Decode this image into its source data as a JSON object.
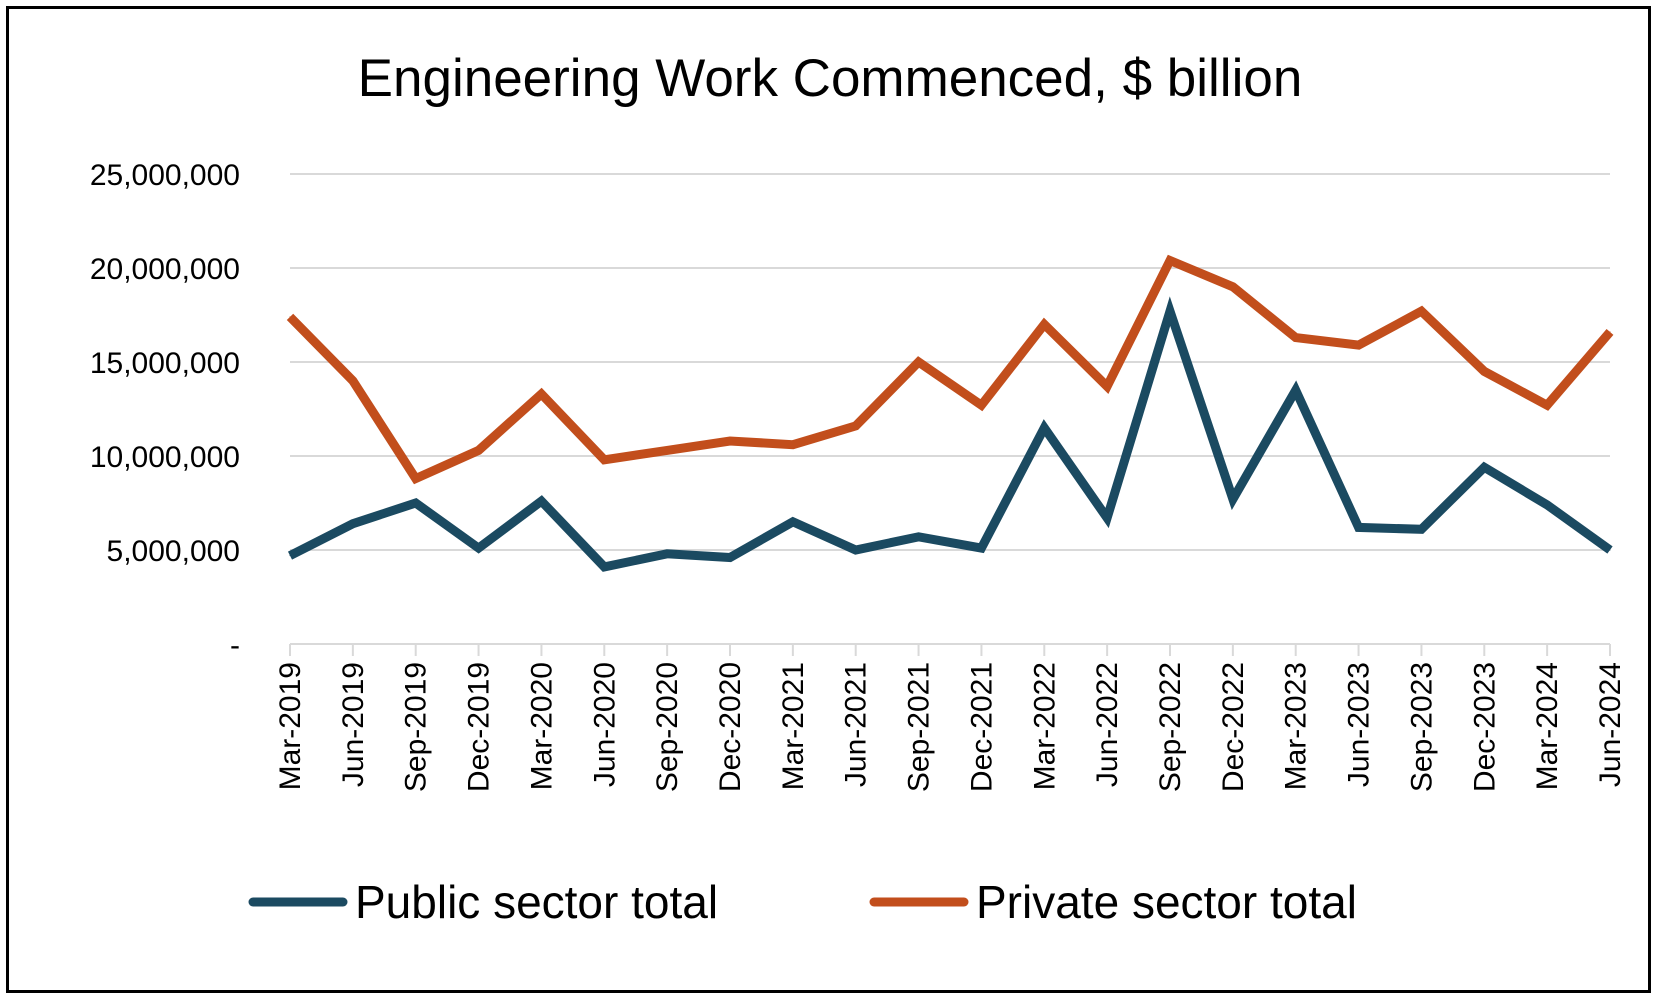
{
  "chart_data": {
    "type": "line",
    "title": "Engineering Work Commenced, $ billion",
    "xlabel": "",
    "ylabel": "",
    "ylim": [
      0,
      25000000
    ],
    "yticks": [
      0,
      5000000,
      10000000,
      15000000,
      20000000,
      25000000
    ],
    "ytick_labels": [
      "-",
      "5,000,000",
      "10,000,000",
      "15,000,000",
      "20,000,000",
      "25,000,000"
    ],
    "categories": [
      "Mar-2019",
      "Jun-2019",
      "Sep-2019",
      "Dec-2019",
      "Mar-2020",
      "Jun-2020",
      "Sep-2020",
      "Dec-2020",
      "Mar-2021",
      "Jun-2021",
      "Sep-2021",
      "Dec-2021",
      "Mar-2022",
      "Jun-2022",
      "Sep-2022",
      "Dec-2022",
      "Mar-2023",
      "Jun-2023",
      "Sep-2023",
      "Dec-2023",
      "Mar-2024",
      "Jun-2024"
    ],
    "grid": true,
    "legend_position": "bottom",
    "series": [
      {
        "name": "Public sector total",
        "color": "#1b4a61",
        "values": [
          4700000,
          6400000,
          7500000,
          5100000,
          7600000,
          4100000,
          4800000,
          4600000,
          6500000,
          5000000,
          5700000,
          5100000,
          11500000,
          6700000,
          17700000,
          7700000,
          13500000,
          6200000,
          6100000,
          9400000,
          7400000,
          5000000
        ]
      },
      {
        "name": "Private sector total",
        "color": "#c24e1c",
        "values": [
          17400000,
          14000000,
          8800000,
          10300000,
          13300000,
          9800000,
          10300000,
          10800000,
          10600000,
          11600000,
          15000000,
          12700000,
          17000000,
          13700000,
          20400000,
          19000000,
          16300000,
          15900000,
          17700000,
          14500000,
          12700000,
          16600000
        ]
      }
    ]
  }
}
